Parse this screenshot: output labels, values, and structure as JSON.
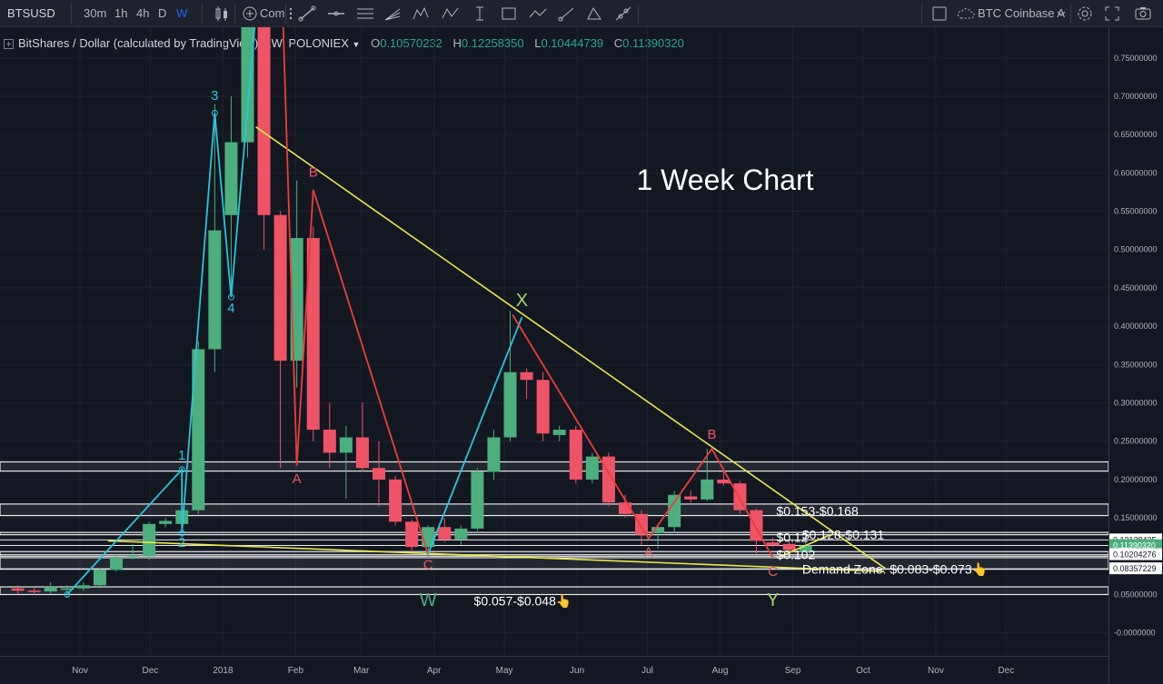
{
  "toolbar": {
    "symbol": "BTSUSD",
    "intervals": [
      "30m",
      "1h",
      "4h",
      "D",
      "W"
    ],
    "active_interval": "W",
    "compare_label": "Com",
    "compare_icon": "plus-circle-icon",
    "watch_symbol": "BTC Coinbase A",
    "accent": "#2962ff"
  },
  "legend": {
    "title": "BitShares / Dollar (calculated by TradingView), 1W, POLONIEX",
    "open_label": "O",
    "open": "0.10570232",
    "high_label": "H",
    "high": "0.12258350",
    "low_label": "L",
    "low": "0.10444739",
    "close_label": "C",
    "close": "0.11390320"
  },
  "chart_data": {
    "type": "candlestick",
    "title": "1 Week Chart",
    "colors": {
      "up": "#4caf7d",
      "down": "#ef5366",
      "trendline": "#e8e84a",
      "impulse": "#26c6da",
      "correction": "#ef3b3b"
    },
    "ylim": [
      -0.03,
      0.79
    ],
    "y_ticks": [
      0.75,
      0.7,
      0.65,
      0.6,
      0.55,
      0.5,
      0.45,
      0.4,
      0.35,
      0.3,
      0.25,
      0.2,
      0.15,
      0.05,
      -0.0
    ],
    "y_tick_labels": [
      "0.75000000",
      "0.70000000",
      "0.65000000",
      "0.60000000",
      "0.55000000",
      "0.50000000",
      "0.45000000",
      "0.40000000",
      "0.35000000",
      "0.30000000",
      "0.25000000",
      "0.20000000",
      "0.15000000",
      "0.05000000",
      "-0.0000000"
    ],
    "x_ticks": [
      "Nov",
      "Dec",
      "2018",
      "Feb",
      "Mar",
      "Apr",
      "May",
      "Jun",
      "Jul",
      "Aug",
      "Sep",
      "Oct",
      "Nov",
      "Dec"
    ],
    "x_tick_dates": [
      "2017-11-01",
      "2017-12-01",
      "2018-01-01",
      "2018-02-01",
      "2018-03-01",
      "2018-04-01",
      "2018-05-01",
      "2018-06-01",
      "2018-07-01",
      "2018-08-01",
      "2018-09-01",
      "2018-10-01",
      "2018-11-01",
      "2018-12-01"
    ],
    "candles": [
      {
        "date": "2017-10-02",
        "open": 0.058,
        "high": 0.062,
        "low": 0.05,
        "close": 0.055
      },
      {
        "date": "2017-10-09",
        "open": 0.055,
        "high": 0.06,
        "low": 0.05,
        "close": 0.054
      },
      {
        "date": "2017-10-16",
        "open": 0.054,
        "high": 0.066,
        "low": 0.051,
        "close": 0.06
      },
      {
        "date": "2017-10-23",
        "open": 0.056,
        "high": 0.062,
        "low": 0.046,
        "close": 0.058
      },
      {
        "date": "2017-10-30",
        "open": 0.058,
        "high": 0.066,
        "low": 0.055,
        "close": 0.062
      },
      {
        "date": "2017-11-06",
        "open": 0.062,
        "high": 0.084,
        "low": 0.058,
        "close": 0.082
      },
      {
        "date": "2017-11-13",
        "open": 0.082,
        "high": 0.102,
        "low": 0.08,
        "close": 0.098
      },
      {
        "date": "2017-11-20",
        "open": 0.1,
        "high": 0.116,
        "low": 0.096,
        "close": 0.1
      },
      {
        "date": "2017-11-27",
        "open": 0.1,
        "high": 0.145,
        "low": 0.095,
        "close": 0.142
      },
      {
        "date": "2017-12-04",
        "open": 0.142,
        "high": 0.15,
        "low": 0.138,
        "close": 0.146
      },
      {
        "date": "2017-12-11",
        "open": 0.142,
        "high": 0.215,
        "low": 0.125,
        "close": 0.16
      },
      {
        "date": "2017-12-18",
        "open": 0.16,
        "high": 0.38,
        "low": 0.155,
        "close": 0.37
      },
      {
        "date": "2017-12-25",
        "open": 0.37,
        "high": 0.69,
        "low": 0.34,
        "close": 0.525
      },
      {
        "date": "2018-01-01",
        "open": 0.545,
        "high": 0.7,
        "low": 0.44,
        "close": 0.64
      },
      {
        "date": "2018-01-08",
        "open": 0.64,
        "high": 0.9,
        "low": 0.62,
        "close": 0.86
      },
      {
        "date": "2018-01-15",
        "open": 0.9,
        "high": 0.91,
        "low": 0.5,
        "close": 0.545
      },
      {
        "date": "2018-01-22",
        "open": 0.545,
        "high": 0.55,
        "low": 0.215,
        "close": 0.355
      },
      {
        "date": "2018-01-29",
        "open": 0.355,
        "high": 0.59,
        "low": 0.32,
        "close": 0.515
      },
      {
        "date": "2018-02-05",
        "open": 0.515,
        "high": 0.53,
        "low": 0.25,
        "close": 0.265
      },
      {
        "date": "2018-02-12",
        "open": 0.265,
        "high": 0.3,
        "low": 0.215,
        "close": 0.235
      },
      {
        "date": "2018-02-19",
        "open": 0.235,
        "high": 0.27,
        "low": 0.175,
        "close": 0.255
      },
      {
        "date": "2018-02-26",
        "open": 0.255,
        "high": 0.3,
        "low": 0.21,
        "close": 0.215
      },
      {
        "date": "2018-03-05",
        "open": 0.215,
        "high": 0.25,
        "low": 0.165,
        "close": 0.2
      },
      {
        "date": "2018-03-12",
        "open": 0.2,
        "high": 0.205,
        "low": 0.14,
        "close": 0.145
      },
      {
        "date": "2018-03-19",
        "open": 0.145,
        "high": 0.148,
        "low": 0.103,
        "close": 0.112
      },
      {
        "date": "2018-03-26",
        "open": 0.112,
        "high": 0.14,
        "low": 0.098,
        "close": 0.138
      },
      {
        "date": "2018-04-02",
        "open": 0.138,
        "high": 0.15,
        "low": 0.118,
        "close": 0.122
      },
      {
        "date": "2018-04-09",
        "open": 0.122,
        "high": 0.14,
        "low": 0.115,
        "close": 0.136
      },
      {
        "date": "2018-04-16",
        "open": 0.136,
        "high": 0.215,
        "low": 0.133,
        "close": 0.21
      },
      {
        "date": "2018-04-23",
        "open": 0.21,
        "high": 0.265,
        "low": 0.2,
        "close": 0.255
      },
      {
        "date": "2018-04-30",
        "open": 0.255,
        "high": 0.42,
        "low": 0.25,
        "close": 0.34
      },
      {
        "date": "2018-05-07",
        "open": 0.34,
        "high": 0.345,
        "low": 0.305,
        "close": 0.33
      },
      {
        "date": "2018-05-14",
        "open": 0.33,
        "high": 0.34,
        "low": 0.25,
        "close": 0.26
      },
      {
        "date": "2018-05-21",
        "open": 0.258,
        "high": 0.27,
        "low": 0.25,
        "close": 0.265
      },
      {
        "date": "2018-05-28",
        "open": 0.265,
        "high": 0.27,
        "low": 0.195,
        "close": 0.2
      },
      {
        "date": "2018-06-04",
        "open": 0.2,
        "high": 0.235,
        "low": 0.195,
        "close": 0.23
      },
      {
        "date": "2018-06-11",
        "open": 0.23,
        "high": 0.235,
        "low": 0.165,
        "close": 0.17
      },
      {
        "date": "2018-06-18",
        "open": 0.17,
        "high": 0.18,
        "low": 0.15,
        "close": 0.155
      },
      {
        "date": "2018-06-25",
        "open": 0.155,
        "high": 0.16,
        "low": 0.115,
        "close": 0.128
      },
      {
        "date": "2018-07-02",
        "open": 0.13,
        "high": 0.14,
        "low": 0.11,
        "close": 0.138
      },
      {
        "date": "2018-07-09",
        "open": 0.138,
        "high": 0.185,
        "low": 0.13,
        "close": 0.18
      },
      {
        "date": "2018-07-16",
        "open": 0.178,
        "high": 0.185,
        "low": 0.17,
        "close": 0.174
      },
      {
        "date": "2018-07-23",
        "open": 0.174,
        "high": 0.24,
        "low": 0.172,
        "close": 0.2
      },
      {
        "date": "2018-07-30",
        "open": 0.2,
        "high": 0.215,
        "low": 0.192,
        "close": 0.195
      },
      {
        "date": "2018-08-06",
        "open": 0.195,
        "high": 0.198,
        "low": 0.155,
        "close": 0.16
      },
      {
        "date": "2018-08-13",
        "open": 0.16,
        "high": 0.162,
        "low": 0.102,
        "close": 0.12
      },
      {
        "date": "2018-08-20",
        "open": 0.118,
        "high": 0.124,
        "low": 0.112,
        "close": 0.114
      },
      {
        "date": "2018-08-27",
        "open": 0.116,
        "high": 0.12,
        "low": 0.103,
        "close": 0.108
      },
      {
        "date": "2018-09-03",
        "open": 0.1057,
        "high": 0.1226,
        "low": 0.1044,
        "close": 0.1139
      }
    ],
    "zones": [
      {
        "top": 0.223,
        "bottom": 0.211
      },
      {
        "top": 0.168,
        "bottom": 0.153
      },
      {
        "top": 0.131,
        "bottom": 0.128
      },
      {
        "top": 0.106,
        "bottom": 0.1
      },
      {
        "top": 0.098,
        "bottom": 0.083
      },
      {
        "top": 0.06,
        "bottom": 0.05
      }
    ],
    "horizontal_lines": [
      0.1213,
      0.1139,
      0.102,
      0.0836
    ],
    "price_tags": [
      {
        "value": 0.12128435,
        "label": "0.12128435",
        "color": "#ffffff"
      },
      {
        "value": 0.1139032,
        "label": "0.11390320",
        "color": "#4caf7d"
      },
      {
        "value": 0.10204276,
        "label": "0.10204276",
        "color": "#ffffff"
      },
      {
        "value": 0.08357229,
        "label": "0.08357229",
        "color": "#ffffff"
      }
    ],
    "trendlines": [
      {
        "x1": "2018-01-15",
        "y1": 0.66,
        "x2": "2018-10-10",
        "y2": 0.085
      },
      {
        "x1": "2017-11-13",
        "y1": 0.12,
        "x2": "2018-10-10",
        "y2": 0.08
      },
      {
        "x1": "2018-08-27",
        "y1": 0.1,
        "x2": "2018-09-17",
        "y2": 0.128
      }
    ],
    "impulse_path": [
      {
        "date": "2017-10-23",
        "y": 0.05
      },
      {
        "date": "2017-12-11",
        "y": 0.213
      },
      {
        "date": "2017-12-11",
        "y": 0.13
      },
      {
        "date": "2017-12-25",
        "y": 0.678
      },
      {
        "date": "2018-01-01",
        "y": 0.438
      },
      {
        "date": "2018-01-15",
        "y": 0.93
      }
    ],
    "correction_paths": [
      [
        {
          "date": "2018-01-22",
          "y": 0.91
        },
        {
          "date": "2018-01-29",
          "y": 0.218
        },
        {
          "date": "2018-02-05",
          "y": 0.578
        },
        {
          "date": "2018-03-26",
          "y": 0.102
        }
      ],
      [
        {
          "date": "2018-03-26",
          "y": 0.103
        },
        {
          "date": "2018-05-05",
          "y": 0.412
        }
      ],
      [
        {
          "date": "2018-05-01",
          "y": 0.415
        },
        {
          "date": "2018-06-28",
          "y": 0.123
        },
        {
          "date": "2018-07-25",
          "y": 0.24
        },
        {
          "date": "2018-08-20",
          "y": 0.098
        }
      ]
    ],
    "wave_labels": [
      {
        "text": "1",
        "date": "2017-12-11",
        "y": 0.226,
        "color": "#26c6da"
      },
      {
        "text": "2",
        "date": "2017-12-11",
        "y": 0.112,
        "color": "#26c6da"
      },
      {
        "text": "3",
        "date": "2017-12-25",
        "y": 0.695,
        "color": "#26c6da"
      },
      {
        "text": "4",
        "date": "2018-01-01",
        "y": 0.418,
        "color": "#26c6da"
      },
      {
        "text": "A",
        "date": "2018-01-29",
        "y": 0.195,
        "color": "#ef5366"
      },
      {
        "text": "B",
        "date": "2018-02-05",
        "y": 0.595,
        "color": "#ef5366"
      },
      {
        "text": "C",
        "date": "2018-03-26",
        "y": 0.083,
        "color": "#ef5366"
      },
      {
        "text": "W",
        "date": "2018-03-26",
        "y": 0.035,
        "color": "#4caf7d"
      },
      {
        "text": "X",
        "date": "2018-05-05",
        "y": 0.426,
        "color": "#a5d66b"
      },
      {
        "text": "A",
        "date": "2018-06-28",
        "y": 0.1,
        "color": "#ef5366"
      },
      {
        "text": "B",
        "date": "2018-07-25",
        "y": 0.253,
        "color": "#ef5366"
      },
      {
        "text": "C",
        "date": "2018-08-20",
        "y": 0.074,
        "color": "#ef5366"
      },
      {
        "text": "Y",
        "date": "2018-08-20",
        "y": 0.035,
        "color": "#a5d66b"
      }
    ],
    "annotations": [
      {
        "text": "$0.153-$0.168",
        "date": "2018-08-25",
        "y": 0.153
      },
      {
        "text": "$0.128-$0.131",
        "date": "2018-09-05",
        "y": 0.122
      },
      {
        "text": "$0.12",
        "date": "2018-08-25",
        "y": 0.119
      },
      {
        "text": "$0.102",
        "date": "2018-08-25",
        "y": 0.096
      },
      {
        "text": "Demand Zone: $0.083-$0.073👆",
        "date": "2018-09-05",
        "y": 0.077
      },
      {
        "text": "$0.057-$0.048👆",
        "date": "2018-04-18",
        "y": 0.036
      }
    ]
  }
}
